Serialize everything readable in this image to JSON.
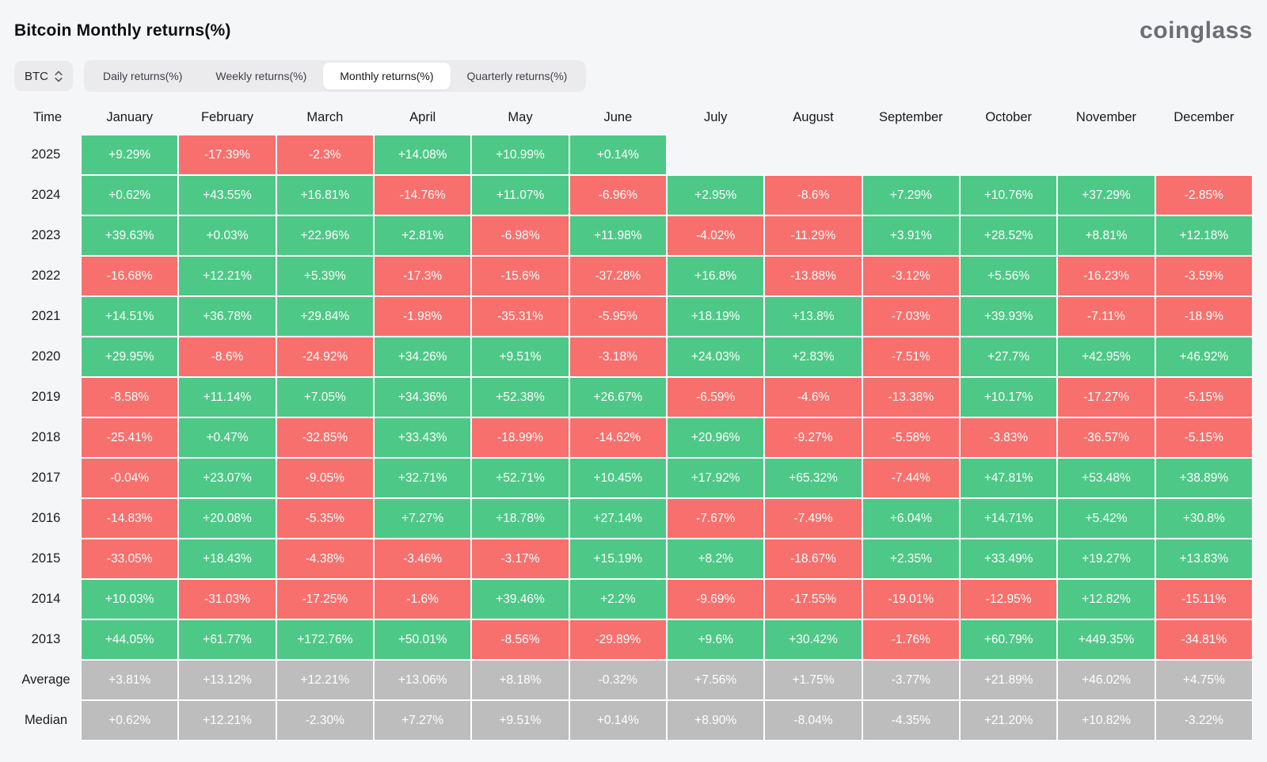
{
  "header": {
    "title": "Bitcoin Monthly returns(%)",
    "logo": "coinglass"
  },
  "controls": {
    "coin": "BTC",
    "coin_icon": "updown-chevron-icon",
    "tabs": [
      {
        "label": "Daily returns(%)",
        "active": false
      },
      {
        "label": "Weekly returns(%)",
        "active": false
      },
      {
        "label": "Monthly returns(%)",
        "active": true
      },
      {
        "label": "Quarterly returns(%)",
        "active": false
      }
    ]
  },
  "chart_data": {
    "type": "heatmap",
    "title": "Bitcoin Monthly returns(%)",
    "legend_position": "none",
    "colors": {
      "positive": "#4ec887",
      "negative": "#f7706d",
      "summary": "#bdbdbd",
      "cell_text": "#ffffff"
    },
    "columns": [
      "Time",
      "January",
      "February",
      "March",
      "April",
      "May",
      "June",
      "July",
      "August",
      "September",
      "October",
      "November",
      "December"
    ],
    "rows": [
      {
        "label": "2025",
        "summary": false,
        "values": [
          "+9.29%",
          "-17.39%",
          "-2.3%",
          "+14.08%",
          "+10.99%",
          "+0.14%",
          "",
          "",
          "",
          "",
          "",
          ""
        ]
      },
      {
        "label": "2024",
        "summary": false,
        "values": [
          "+0.62%",
          "+43.55%",
          "+16.81%",
          "-14.76%",
          "+11.07%",
          "-6.96%",
          "+2.95%",
          "-8.6%",
          "+7.29%",
          "+10.76%",
          "+37.29%",
          "-2.85%"
        ]
      },
      {
        "label": "2023",
        "summary": false,
        "values": [
          "+39.63%",
          "+0.03%",
          "+22.96%",
          "+2.81%",
          "-6.98%",
          "+11.98%",
          "-4.02%",
          "-11.29%",
          "+3.91%",
          "+28.52%",
          "+8.81%",
          "+12.18%"
        ]
      },
      {
        "label": "2022",
        "summary": false,
        "values": [
          "-16.68%",
          "+12.21%",
          "+5.39%",
          "-17.3%",
          "-15.6%",
          "-37.28%",
          "+16.8%",
          "-13.88%",
          "-3.12%",
          "+5.56%",
          "-16.23%",
          "-3.59%"
        ]
      },
      {
        "label": "2021",
        "summary": false,
        "values": [
          "+14.51%",
          "+36.78%",
          "+29.84%",
          "-1.98%",
          "-35.31%",
          "-5.95%",
          "+18.19%",
          "+13.8%",
          "-7.03%",
          "+39.93%",
          "-7.11%",
          "-18.9%"
        ]
      },
      {
        "label": "2020",
        "summary": false,
        "values": [
          "+29.95%",
          "-8.6%",
          "-24.92%",
          "+34.26%",
          "+9.51%",
          "-3.18%",
          "+24.03%",
          "+2.83%",
          "-7.51%",
          "+27.7%",
          "+42.95%",
          "+46.92%"
        ]
      },
      {
        "label": "2019",
        "summary": false,
        "values": [
          "-8.58%",
          "+11.14%",
          "+7.05%",
          "+34.36%",
          "+52.38%",
          "+26.67%",
          "-6.59%",
          "-4.6%",
          "-13.38%",
          "+10.17%",
          "-17.27%",
          "-5.15%"
        ]
      },
      {
        "label": "2018",
        "summary": false,
        "values": [
          "-25.41%",
          "+0.47%",
          "-32.85%",
          "+33.43%",
          "-18.99%",
          "-14.62%",
          "+20.96%",
          "-9.27%",
          "-5.58%",
          "-3.83%",
          "-36.57%",
          "-5.15%"
        ]
      },
      {
        "label": "2017",
        "summary": false,
        "values": [
          "-0.04%",
          "+23.07%",
          "-9.05%",
          "+32.71%",
          "+52.71%",
          "+10.45%",
          "+17.92%",
          "+65.32%",
          "-7.44%",
          "+47.81%",
          "+53.48%",
          "+38.89%"
        ]
      },
      {
        "label": "2016",
        "summary": false,
        "values": [
          "-14.83%",
          "+20.08%",
          "-5.35%",
          "+7.27%",
          "+18.78%",
          "+27.14%",
          "-7.67%",
          "-7.49%",
          "+6.04%",
          "+14.71%",
          "+5.42%",
          "+30.8%"
        ]
      },
      {
        "label": "2015",
        "summary": false,
        "values": [
          "-33.05%",
          "+18.43%",
          "-4.38%",
          "-3.46%",
          "-3.17%",
          "+15.19%",
          "+8.2%",
          "-18.67%",
          "+2.35%",
          "+33.49%",
          "+19.27%",
          "+13.83%"
        ]
      },
      {
        "label": "2014",
        "summary": false,
        "values": [
          "+10.03%",
          "-31.03%",
          "-17.25%",
          "-1.6%",
          "+39.46%",
          "+2.2%",
          "-9.69%",
          "-17.55%",
          "-19.01%",
          "-12.95%",
          "+12.82%",
          "-15.11%"
        ]
      },
      {
        "label": "2013",
        "summary": false,
        "values": [
          "+44.05%",
          "+61.77%",
          "+172.76%",
          "+50.01%",
          "-8.56%",
          "-29.89%",
          "+9.6%",
          "+30.42%",
          "-1.76%",
          "+60.79%",
          "+449.35%",
          "-34.81%"
        ]
      },
      {
        "label": "Average",
        "summary": true,
        "values": [
          "+3.81%",
          "+13.12%",
          "+12.21%",
          "+13.06%",
          "+8.18%",
          "-0.32%",
          "+7.56%",
          "+1.75%",
          "-3.77%",
          "+21.89%",
          "+46.02%",
          "+4.75%"
        ]
      },
      {
        "label": "Median",
        "summary": true,
        "values": [
          "+0.62%",
          "+12.21%",
          "-2.30%",
          "+7.27%",
          "+9.51%",
          "+0.14%",
          "+8.90%",
          "-8.04%",
          "-4.35%",
          "+21.20%",
          "+10.82%",
          "-3.22%"
        ]
      }
    ]
  }
}
